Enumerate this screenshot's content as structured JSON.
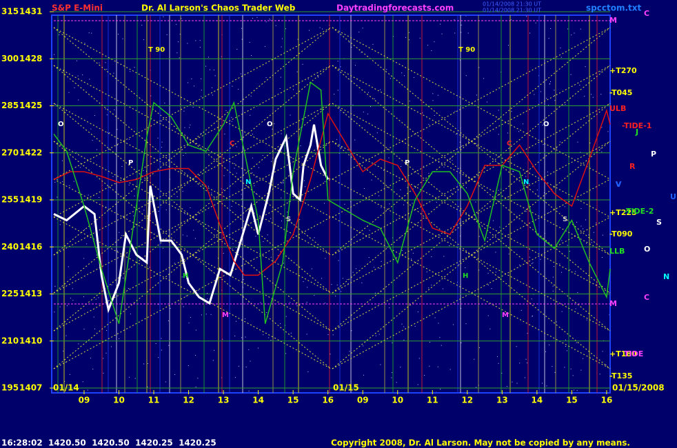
{
  "chart_data": {
    "type": "line",
    "title": "Dr. Al Larson's Chaos Trader Web",
    "symbol": "S&P E-Mini",
    "website": "Daytradingforecasts.com",
    "timestamp_lines": [
      "01/14/2008 21:30 UT",
      "01/14/2008 21:30 UT"
    ],
    "file": "spcctom.txt",
    "status_line": "16:28:02  1420.50  1420.50  1420.25  1420.25",
    "copyright": "Copyright 2008, Dr. Al Larson. May not be copied by any means.",
    "date_labels": [
      "01/14",
      "01/15",
      "01/15/2008"
    ],
    "right_labels": [
      "M",
      "+T270",
      "-T045",
      "ULB",
      "-TIDE-1",
      "+T225",
      "-TIDE-2",
      "-T090",
      "LLB",
      "M",
      "+T180",
      "TIDE",
      "-T135"
    ],
    "side_letters": [
      "C",
      "J",
      "P",
      "R",
      "V",
      "U",
      "S",
      "O",
      "N",
      "C"
    ],
    "chart_labels": [
      "T 90",
      "T 90",
      "O",
      "P",
      "C",
      "N",
      "O",
      "S",
      "H",
      "M",
      "O",
      "P",
      "C",
      "N",
      "S",
      "H",
      "M",
      "V"
    ],
    "xlim": [
      8.13,
      24.1
    ],
    "xticks": [
      {
        "value": 9,
        "label": "09"
      },
      10,
      11,
      12,
      13,
      14,
      15,
      16,
      {
        "value": 17,
        "label": "09"
      },
      {
        "value": 18,
        "label": "10"
      },
      {
        "value": 19,
        "label": "11"
      },
      {
        "value": 20,
        "label": "12"
      },
      {
        "value": 21,
        "label": "13"
      },
      {
        "value": 22,
        "label": "14"
      },
      {
        "value": 23,
        "label": "15"
      },
      {
        "value": 24,
        "label": "16"
      }
    ],
    "ylim": [
      195,
      315
    ],
    "yticks": [
      195,
      210,
      225,
      240,
      255,
      270,
      285,
      300,
      315
    ],
    "y2lim": [
      1407,
      1431
    ],
    "y2ticks": [
      1407,
      1410,
      1413,
      1416,
      1419,
      1422,
      1425,
      1428,
      1431
    ],
    "grid": true,
    "series": [
      {
        "name": "price",
        "color": "#ffffff",
        "axis": "y2",
        "x": [
          8.13,
          8.5,
          9,
          9.3,
          9.5,
          9.7,
          10,
          10.2,
          10.5,
          10.8,
          10.9,
          11.2,
          11.5,
          11.8,
          12,
          12.3,
          12.6,
          12.9,
          13.2,
          13.5,
          13.8,
          14,
          14.3,
          14.5,
          14.8,
          15,
          15.2,
          15.3,
          15.5,
          15.6,
          15.8,
          16
        ],
        "values": [
          1418.1,
          1417.7,
          1418.6,
          1418.1,
          1414.2,
          1412,
          1413.7,
          1416.8,
          1415.5,
          1415,
          1419.9,
          1416.4,
          1416.4,
          1415.5,
          1413.7,
          1412.8,
          1412.4,
          1414.6,
          1414.2,
          1416.4,
          1418.6,
          1416.8,
          1419.4,
          1421.6,
          1423,
          1419.4,
          1419,
          1421.2,
          1422.5,
          1423.8,
          1421.2,
          1420.3
        ]
      },
      {
        "name": "red",
        "color": "#e01010",
        "axis": "y2",
        "x": [
          8.13,
          8.6,
          9,
          9.5,
          10,
          10.5,
          11,
          11.5,
          12,
          12.5,
          13,
          13.3,
          13.6,
          14,
          14.5,
          15,
          15.5,
          16,
          17,
          17.5,
          18,
          18.5,
          19,
          19.5,
          20,
          20.5,
          21,
          21.5,
          22,
          22.5,
          23,
          23.5,
          24,
          24.1
        ],
        "values": [
          1420.3,
          1420.8,
          1420.8,
          1420.5,
          1420.1,
          1420.3,
          1420.8,
          1421,
          1421,
          1419.9,
          1416.8,
          1415.1,
          1414.2,
          1414.2,
          1415.1,
          1416.8,
          1420.3,
          1424.5,
          1420.8,
          1421.6,
          1421.2,
          1419.4,
          1417.2,
          1416.8,
          1418.6,
          1421.2,
          1421.2,
          1422.5,
          1420.8,
          1419.4,
          1418.6,
          1421.6,
          1424.7,
          1423.8
        ]
      },
      {
        "name": "green",
        "color": "#20c020",
        "axis": "y2",
        "x": [
          8.13,
          8.5,
          9,
          9.5,
          10,
          10.5,
          10.8,
          11,
          11.5,
          12,
          12.5,
          13,
          13.3,
          13.6,
          14,
          14.2,
          14.7,
          15,
          15.5,
          15.8,
          16,
          17,
          17.5,
          18,
          18.5,
          19,
          19.5,
          20,
          20.5,
          21,
          21.5,
          22,
          22.5,
          23,
          23.5,
          24,
          24.1
        ],
        "values": [
          1423.2,
          1422.1,
          1418.6,
          1414.6,
          1411.1,
          1418.6,
          1423,
          1425.2,
          1424.3,
          1422.5,
          1422.1,
          1423.8,
          1425.2,
          1422.1,
          1417.7,
          1411.1,
          1415,
          1420.8,
          1426.5,
          1426,
          1419,
          1417.7,
          1417.2,
          1415,
          1419,
          1420.8,
          1420.8,
          1419.4,
          1416.4,
          1421.2,
          1420.8,
          1416.8,
          1415.9,
          1417.7,
          1415,
          1412.8,
          1414.6
        ]
      }
    ]
  }
}
